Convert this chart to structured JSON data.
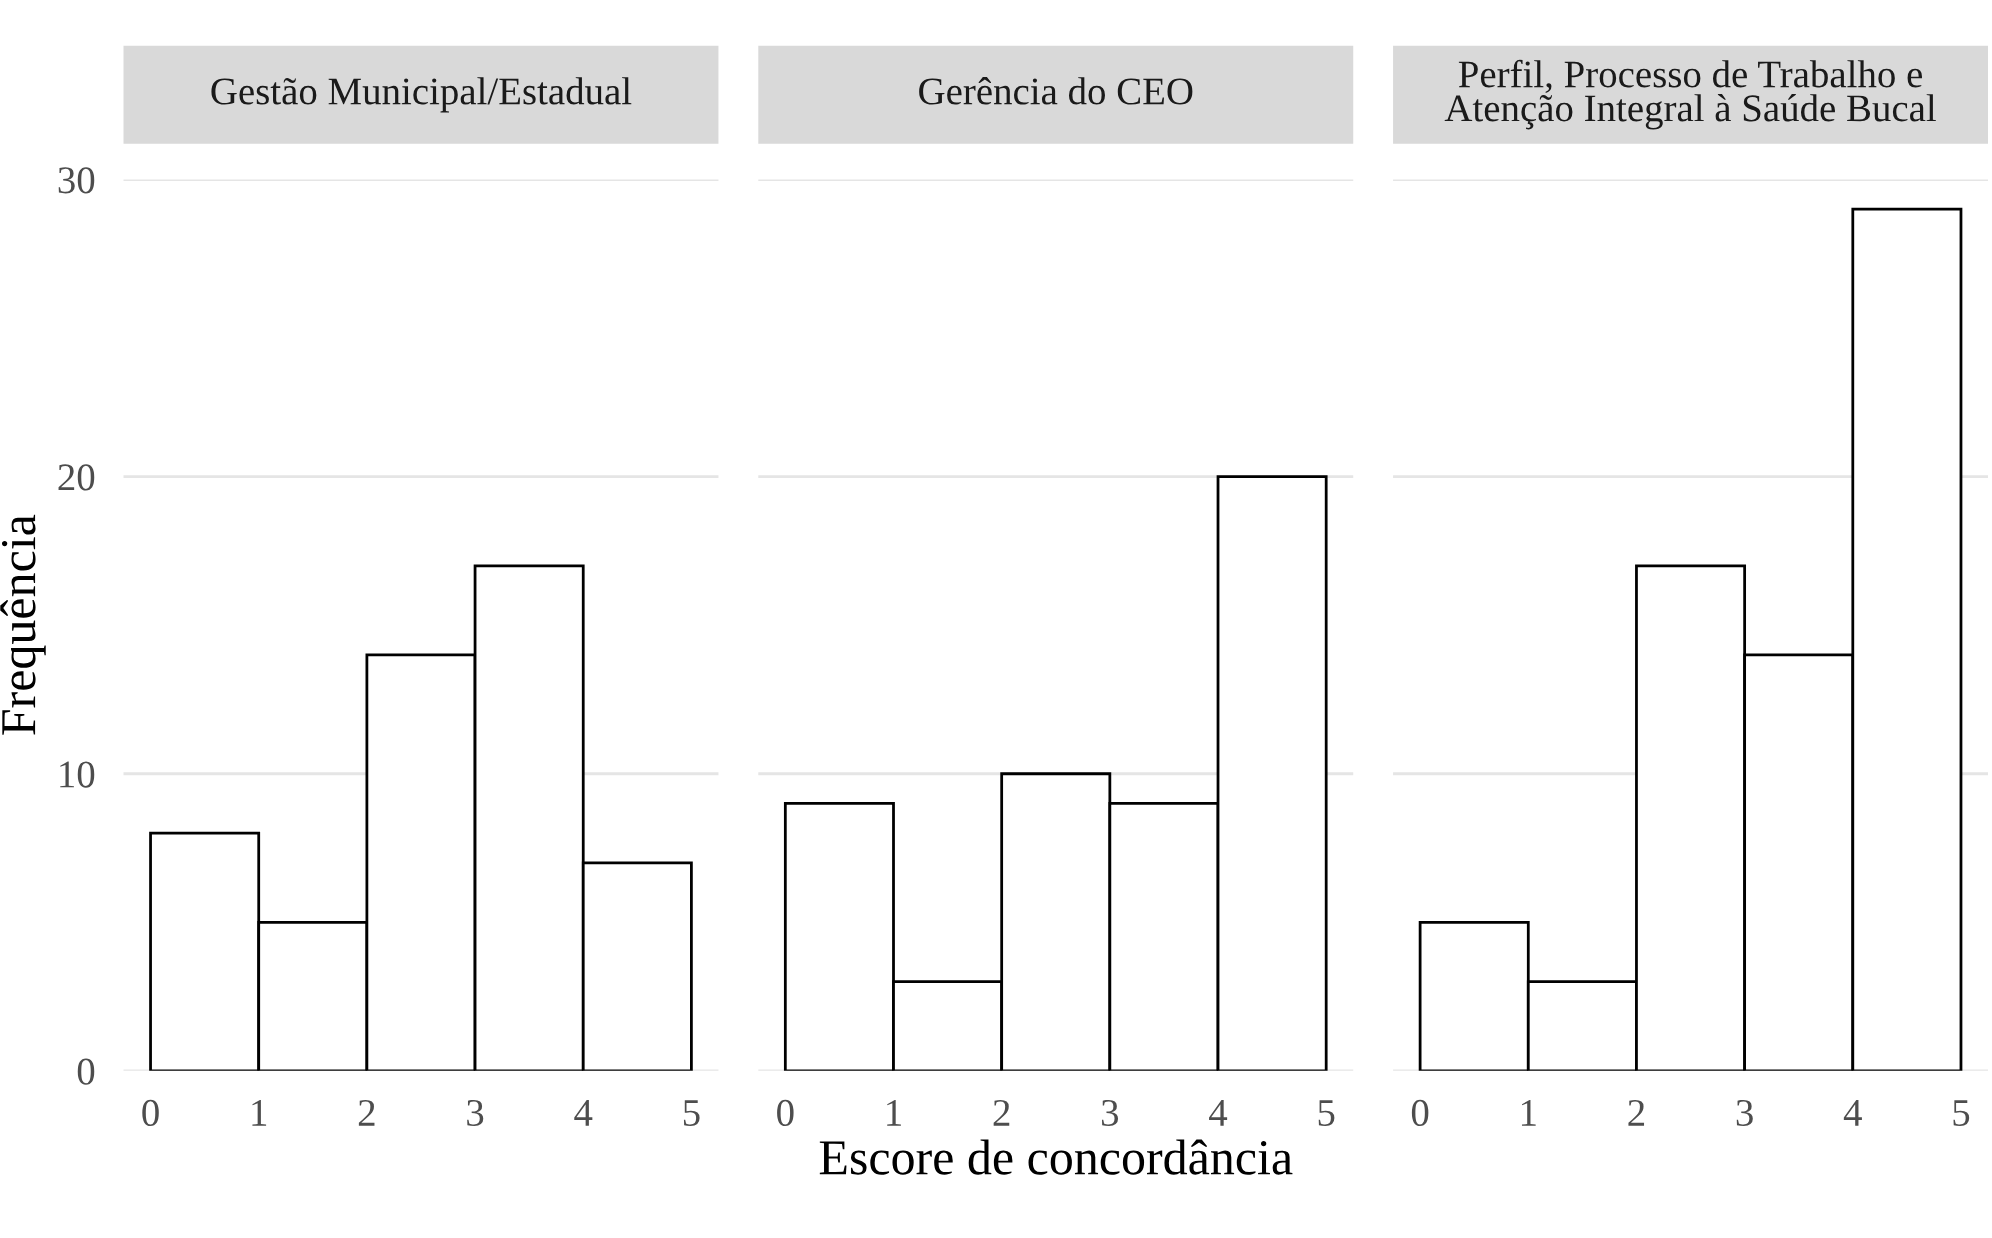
{
  "chart_data": [
    {
      "type": "histogram",
      "title": "Gestão Municipal/Estadual",
      "ylabel": "Frequência",
      "bins": [
        0,
        1,
        2,
        3,
        4,
        5
      ],
      "values": [
        8,
        5,
        14,
        17,
        7
      ],
      "color": "#ffffff",
      "xlim": [
        -0.25,
        5.25
      ],
      "xticks": [
        0,
        1,
        2,
        3,
        4,
        5
      ],
      "ylim": [
        0,
        30
      ],
      "yticks": [
        0,
        10,
        20,
        30
      ],
      "grid": "y"
    },
    {
      "type": "histogram",
      "title": "Gerência do CEO",
      "xlabel": "Escore de concordância",
      "bins": [
        0,
        1,
        2,
        3,
        4,
        5
      ],
      "values": [
        9,
        3,
        10,
        9,
        20
      ],
      "color": "#ffffff",
      "xlim": [
        -0.25,
        5.25
      ],
      "xticks": [
        0,
        1,
        2,
        3,
        4,
        5
      ],
      "ylim": [
        0,
        30
      ],
      "yticks": [
        0,
        10,
        20,
        30
      ],
      "grid": "y",
      "tick_labels": "x"
    },
    {
      "type": "histogram",
      "title": "Perfil, Processo de Trabalho e\nAtenção Integral à Saúde Bucal",
      "bins": [
        0,
        1,
        2,
        3,
        4,
        5
      ],
      "values": [
        5,
        3,
        17,
        14,
        29
      ],
      "color": "#ffffff",
      "xlim": [
        -0.25,
        5.25
      ],
      "xticks": [
        0,
        1,
        2,
        3,
        4,
        5
      ],
      "ylim": [
        0,
        30
      ],
      "yticks": [
        0,
        10,
        20,
        30
      ],
      "grid": "y",
      "tick_labels": "x"
    }
  ]
}
